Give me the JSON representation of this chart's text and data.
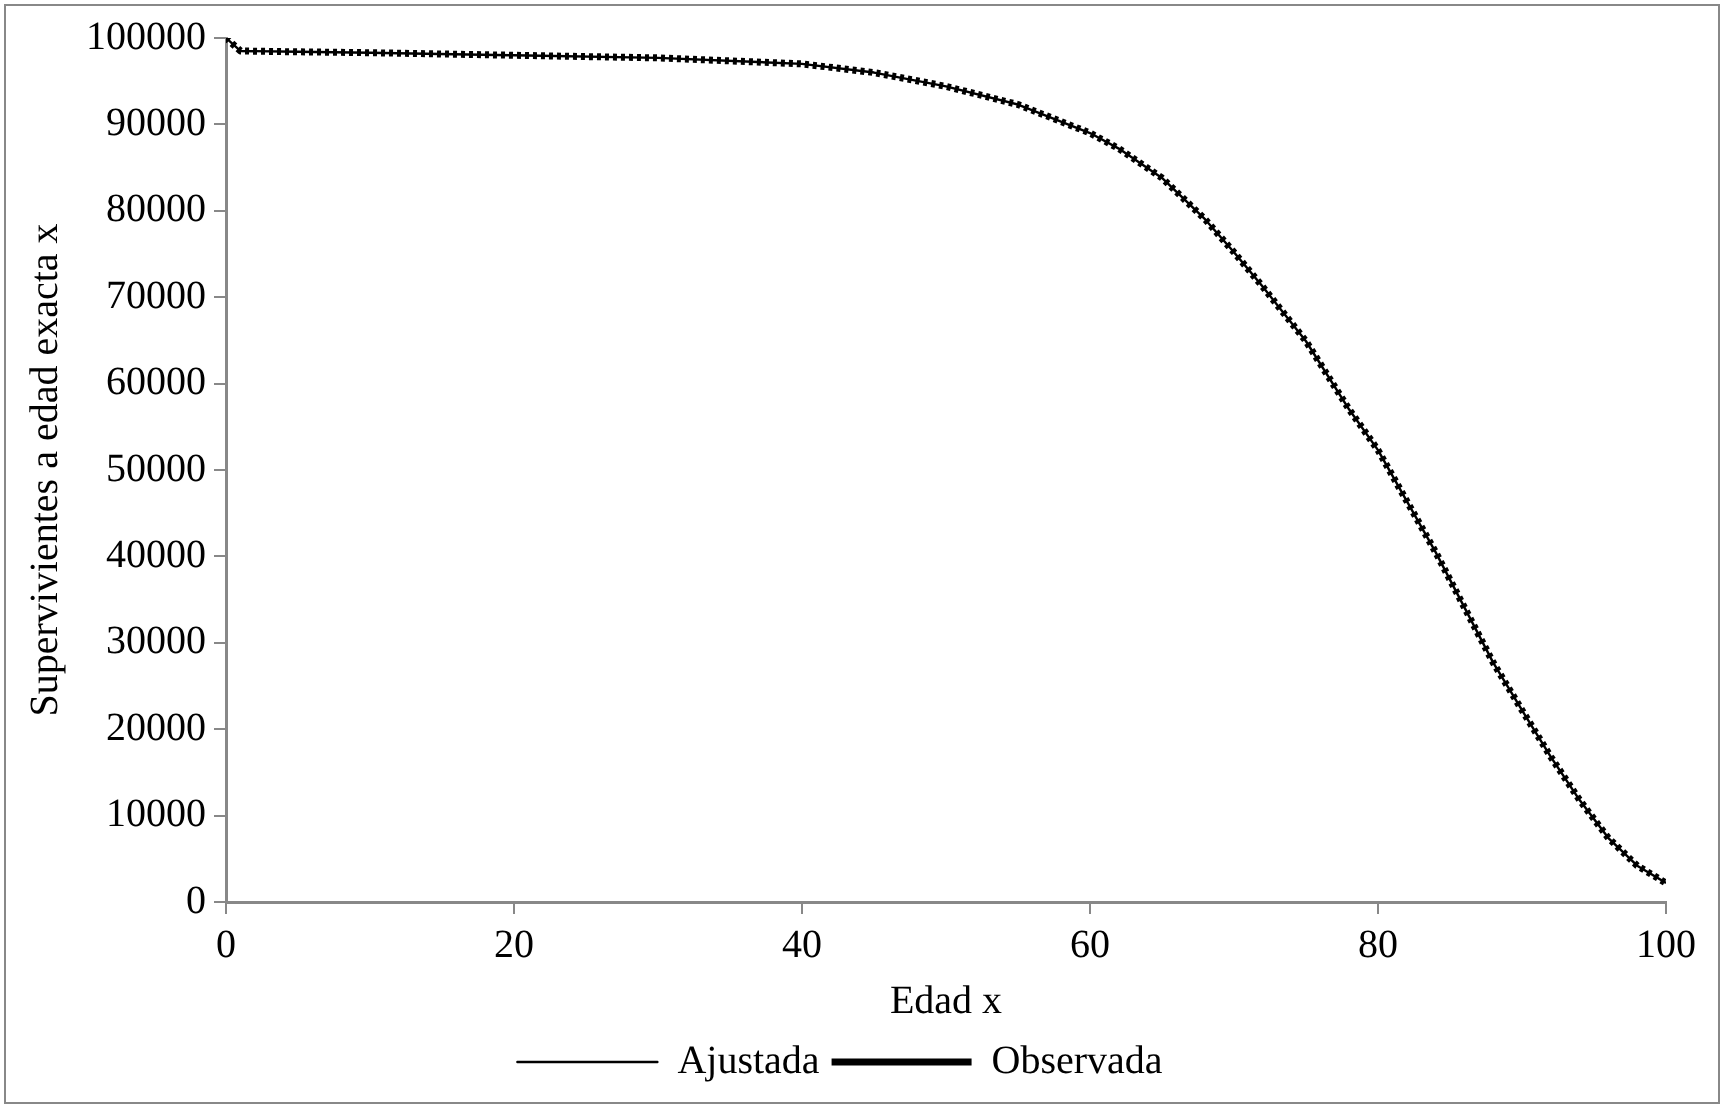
{
  "chart_data": {
    "type": "line",
    "xlabel": "Edad x",
    "ylabel": "Supervivientes a edad exacta x",
    "x": [
      0,
      1,
      5,
      10,
      20,
      30,
      40,
      45,
      50,
      55,
      60,
      62,
      65,
      68,
      70,
      72,
      75,
      78,
      80,
      82,
      84,
      86,
      88,
      90,
      92,
      94,
      96,
      98,
      100
    ],
    "series": [
      {
        "name": "Observada",
        "color": "#000000",
        "line_style": "dotted",
        "values": [
          100000,
          98500,
          98400,
          98300,
          98000,
          97700,
          97000,
          96000,
          94400,
          92300,
          89000,
          87200,
          83800,
          79000,
          75200,
          71200,
          64900,
          57000,
          52300,
          46400,
          40500,
          34100,
          27700,
          22200,
          16800,
          11800,
          7400,
          4200,
          2200
        ]
      },
      {
        "name": "Ajustada",
        "color": "#000000",
        "line_style": "solid",
        "values": [
          100000,
          98500,
          98400,
          98300,
          98000,
          97700,
          97000,
          96000,
          94400,
          92300,
          89000,
          87200,
          83800,
          79000,
          75200,
          71200,
          64900,
          57000,
          52300,
          46400,
          40500,
          34100,
          27700,
          22200,
          16800,
          11800,
          7400,
          4200,
          2200
        ]
      }
    ],
    "xlim": [
      0,
      100
    ],
    "xticks": [
      0,
      20,
      40,
      60,
      80,
      100
    ],
    "ylim": [
      0,
      100000
    ],
    "yticks": [
      0,
      10000,
      20000,
      30000,
      40000,
      50000,
      60000,
      70000,
      80000,
      90000,
      100000
    ],
    "grid": false,
    "legend": "bottom",
    "marker": "none"
  }
}
